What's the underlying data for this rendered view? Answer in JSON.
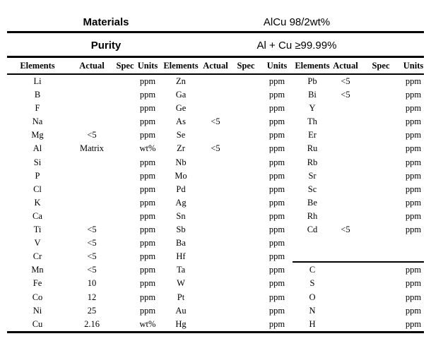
{
  "header": {
    "materials_label": "Materials",
    "materials_value": "AlCu 98/2wt%",
    "purity_label": "Purity",
    "purity_value": "Al + Cu ≥99.99%"
  },
  "table": {
    "column_headers": [
      "Elements",
      "Actual",
      "Spec",
      "Units"
    ],
    "sections": 3,
    "rows": [
      {
        "cells": [
          [
            "Li",
            "",
            "",
            "ppm"
          ],
          [
            "Zn",
            "",
            "",
            "ppm"
          ],
          [
            "Pb",
            "<5",
            "",
            "ppm"
          ]
        ]
      },
      {
        "cells": [
          [
            "B",
            "",
            "",
            "ppm"
          ],
          [
            "Ga",
            "",
            "",
            "ppm"
          ],
          [
            "Bi",
            "<5",
            "",
            "ppm"
          ]
        ]
      },
      {
        "cells": [
          [
            "F",
            "",
            "",
            "ppm"
          ],
          [
            "Ge",
            "",
            "",
            "ppm"
          ],
          [
            "Y",
            "",
            "",
            "ppm"
          ]
        ]
      },
      {
        "cells": [
          [
            "Na",
            "",
            "",
            "ppm"
          ],
          [
            "As",
            "<5",
            "",
            "ppm"
          ],
          [
            "Th",
            "",
            "",
            "ppm"
          ]
        ]
      },
      {
        "cells": [
          [
            "Mg",
            "<5",
            "",
            "ppm"
          ],
          [
            "Se",
            "",
            "",
            "ppm"
          ],
          [
            "Er",
            "",
            "",
            "ppm"
          ]
        ]
      },
      {
        "cells": [
          [
            "Al",
            "Matrix",
            "",
            "wt%"
          ],
          [
            "Zr",
            "<5",
            "",
            "ppm"
          ],
          [
            "Ru",
            "",
            "",
            "ppm"
          ]
        ]
      },
      {
        "cells": [
          [
            "Si",
            "",
            "",
            "ppm"
          ],
          [
            "Nb",
            "",
            "",
            "ppm"
          ],
          [
            "Rb",
            "",
            "",
            "ppm"
          ]
        ]
      },
      {
        "cells": [
          [
            "P",
            "",
            "",
            "ppm"
          ],
          [
            "Mo",
            "",
            "",
            "ppm"
          ],
          [
            "Sr",
            "",
            "",
            "ppm"
          ]
        ]
      },
      {
        "cells": [
          [
            "Cl",
            "",
            "",
            "ppm"
          ],
          [
            "Pd",
            "",
            "",
            "ppm"
          ],
          [
            "Sc",
            "",
            "",
            "ppm"
          ]
        ]
      },
      {
        "cells": [
          [
            "K",
            "",
            "",
            "ppm"
          ],
          [
            "Ag",
            "",
            "",
            "ppm"
          ],
          [
            "Be",
            "",
            "",
            "ppm"
          ]
        ]
      },
      {
        "cells": [
          [
            "Ca",
            "",
            "",
            "ppm"
          ],
          [
            "Sn",
            "",
            "",
            "ppm"
          ],
          [
            "Rh",
            "",
            "",
            "ppm"
          ]
        ]
      },
      {
        "cells": [
          [
            "Ti",
            "<5",
            "",
            "ppm"
          ],
          [
            "Sb",
            "",
            "",
            "ppm"
          ],
          [
            "Cd",
            "<5",
            "",
            "ppm"
          ]
        ]
      },
      {
        "cells": [
          [
            "V",
            "<5",
            "",
            "ppm"
          ],
          [
            "Ba",
            "",
            "",
            "ppm"
          ],
          [
            "",
            "",
            "",
            ""
          ]
        ]
      },
      {
        "cells": [
          [
            "Cr",
            "<5",
            "",
            "ppm"
          ],
          [
            "Hf",
            "",
            "",
            "ppm"
          ],
          [
            "",
            "",
            "",
            ""
          ]
        ]
      },
      {
        "cells": [
          [
            "Mn",
            "<5",
            "",
            "ppm"
          ],
          [
            "Ta",
            "",
            "",
            "ppm"
          ],
          [
            "C",
            "",
            "",
            "ppm"
          ]
        ]
      },
      {
        "cells": [
          [
            "Fe",
            "10",
            "",
            "ppm"
          ],
          [
            "W",
            "",
            "",
            "ppm"
          ],
          [
            "S",
            "",
            "",
            "ppm"
          ]
        ]
      },
      {
        "cells": [
          [
            "Co",
            "12",
            "",
            "ppm"
          ],
          [
            "Pt",
            "",
            "",
            "ppm"
          ],
          [
            "O",
            "",
            "",
            "ppm"
          ]
        ]
      },
      {
        "cells": [
          [
            "Ni",
            "25",
            "",
            "ppm"
          ],
          [
            "Au",
            "",
            "",
            "ppm"
          ],
          [
            "N",
            "",
            "",
            "ppm"
          ]
        ]
      },
      {
        "cells": [
          [
            "Cu",
            "2.16",
            "",
            "wt%"
          ],
          [
            "Hg",
            "",
            "",
            "ppm"
          ],
          [
            "H",
            "",
            "",
            "ppm"
          ]
        ]
      }
    ]
  },
  "colors": {
    "text": "#000000",
    "background": "#ffffff",
    "rule": "#000000"
  }
}
